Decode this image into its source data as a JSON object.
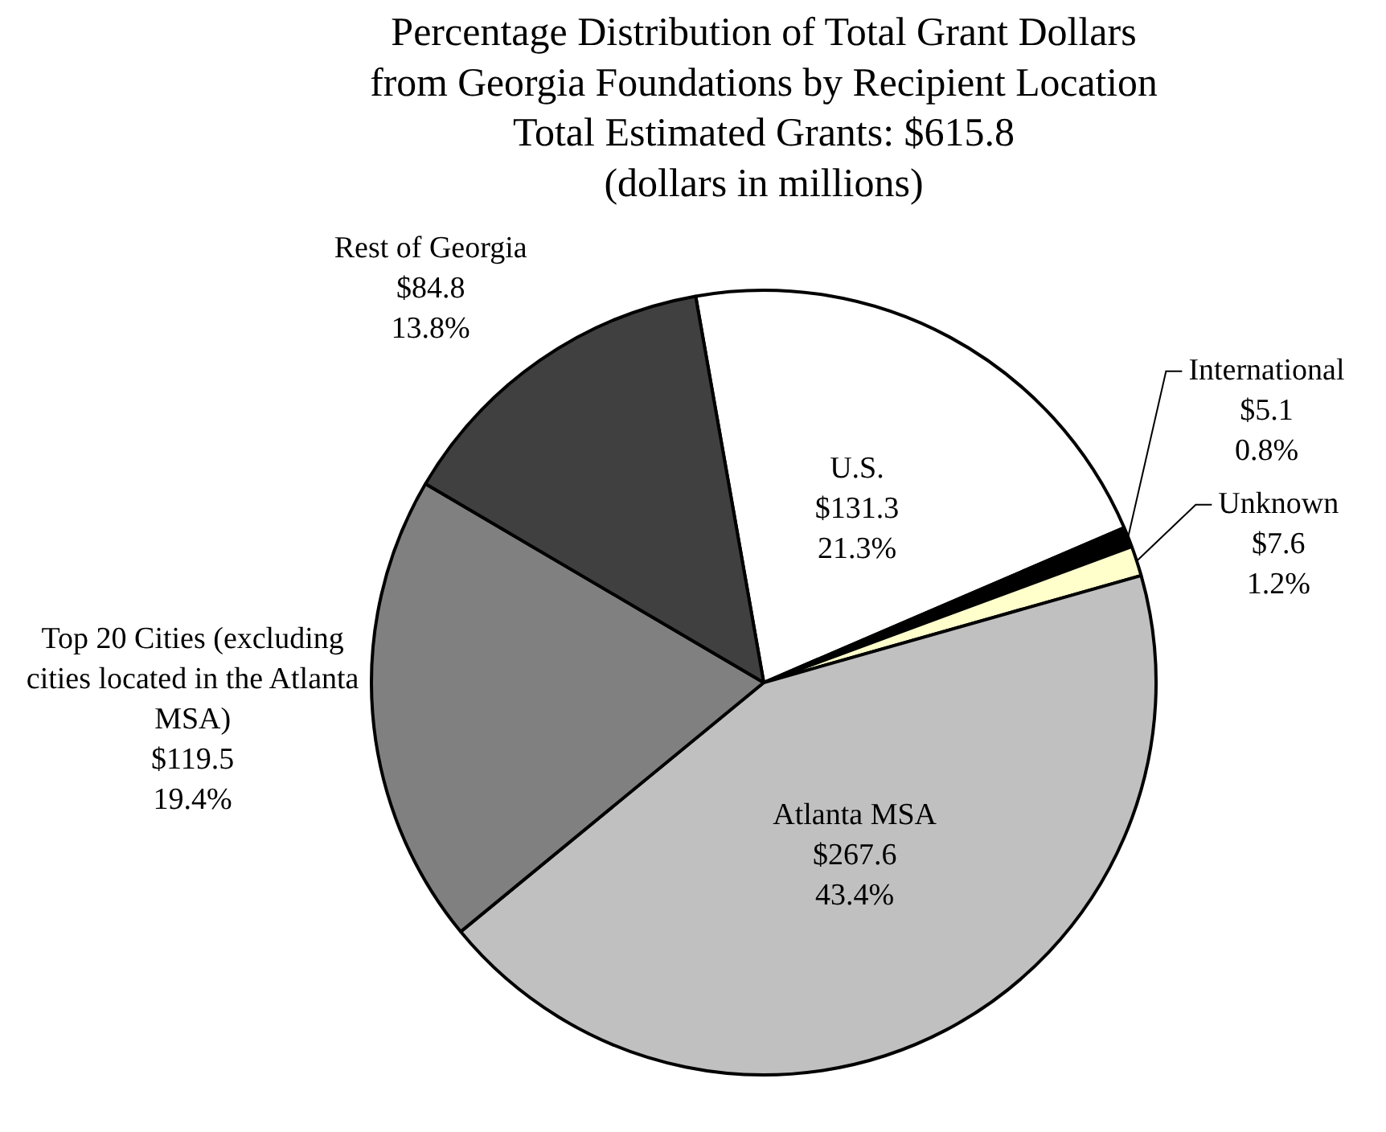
{
  "chart_data": {
    "type": "pie",
    "title": [
      "Percentage Distribution of Total Grant Dollars",
      "from Georgia Foundations by Recipient Location",
      "Total Estimated Grants: $615.8",
      "(dollars in millions)"
    ],
    "categories": [
      "U.S.",
      "International",
      "Unknown",
      "Atlanta MSA",
      "Top 20 Cities (excluding cities located in the Atlanta MSA)",
      "Rest of Georgia"
    ],
    "values": [
      131.3,
      5.1,
      7.6,
      267.6,
      119.5,
      84.8
    ],
    "colors": [
      "#ffffff",
      "#000000",
      "#ffffcc",
      "#c0c0c0",
      "#808080",
      "#404040"
    ],
    "value_labels": [
      "$131.3\n21.3%",
      "$5.1\n0.8%",
      "$7.6\n1.2%",
      "$267.6\n43.4%",
      "$119.5\n19.4%",
      "$84.8\n13.8%"
    ],
    "legend": false
  }
}
